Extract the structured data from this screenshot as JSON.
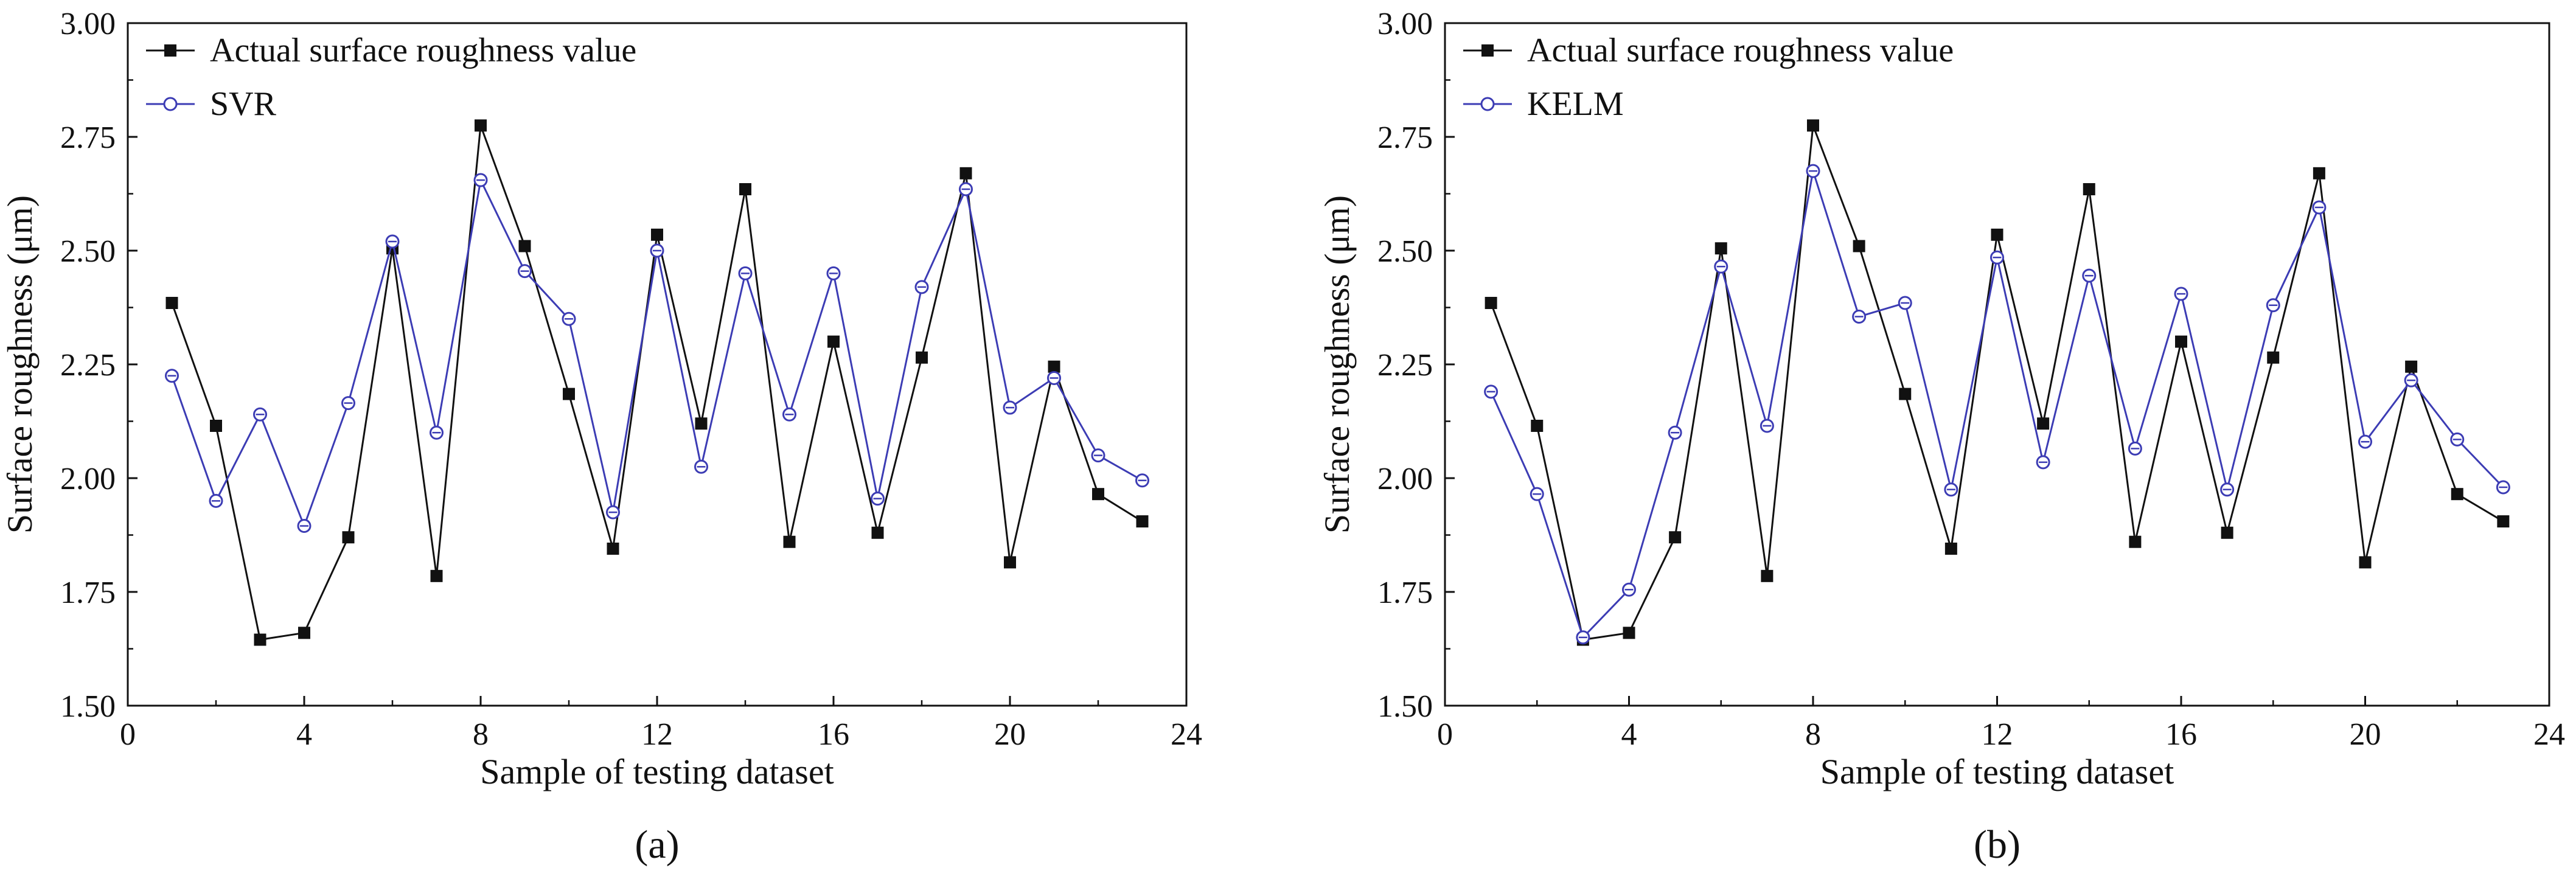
{
  "chart_data": [
    {
      "type": "line",
      "panel_label": "(a)",
      "xlabel": "Sample of testing dataset",
      "ylabel": "Surface roughness (μm)",
      "xlim": [
        0,
        24
      ],
      "ylim": [
        1.5,
        3.0
      ],
      "xticks": [
        "0",
        "4",
        "8",
        "12",
        "16",
        "20",
        "24"
      ],
      "yticks": [
        "1.50",
        "1.75",
        "2.00",
        "2.25",
        "2.50",
        "2.75",
        "3.00"
      ],
      "legend_position": "top-left",
      "x": [
        1,
        2,
        3,
        4,
        5,
        6,
        7,
        8,
        9,
        10,
        11,
        12,
        13,
        14,
        15,
        16,
        17,
        18,
        19,
        20,
        21,
        22,
        23
      ],
      "series": [
        {
          "name": "Actual surface roughness value",
          "color": "#111111",
          "marker": "square",
          "values": [
            2.385,
            2.115,
            1.645,
            1.66,
            1.87,
            2.505,
            1.785,
            2.775,
            2.51,
            2.185,
            1.845,
            2.535,
            2.12,
            2.635,
            1.86,
            2.3,
            1.88,
            2.265,
            2.67,
            1.815,
            2.245,
            1.965,
            1.905
          ]
        },
        {
          "name": "SVR",
          "color": "#3c3cb4",
          "marker": "circle",
          "values": [
            2.225,
            1.95,
            2.14,
            1.895,
            2.165,
            2.52,
            2.1,
            2.655,
            2.455,
            2.35,
            1.925,
            2.5,
            2.025,
            2.45,
            2.14,
            2.45,
            1.955,
            2.42,
            2.635,
            2.155,
            2.22,
            2.05,
            1.995
          ]
        }
      ]
    },
    {
      "type": "line",
      "panel_label": "(b)",
      "xlabel": "Sample of testing dataset",
      "ylabel": "Surface roughness (μm)",
      "xlim": [
        0,
        24
      ],
      "ylim": [
        1.5,
        3.0
      ],
      "xticks": [
        "0",
        "4",
        "8",
        "12",
        "16",
        "20",
        "24"
      ],
      "yticks": [
        "1.50",
        "1.75",
        "2.00",
        "2.25",
        "2.50",
        "2.75",
        "3.00"
      ],
      "legend_position": "top-left",
      "x": [
        1,
        2,
        3,
        4,
        5,
        6,
        7,
        8,
        9,
        10,
        11,
        12,
        13,
        14,
        15,
        16,
        17,
        18,
        19,
        20,
        21,
        22,
        23
      ],
      "series": [
        {
          "name": "Actual surface roughness value",
          "color": "#111111",
          "marker": "square",
          "values": [
            2.385,
            2.115,
            1.645,
            1.66,
            1.87,
            2.505,
            1.785,
            2.775,
            2.51,
            2.185,
            1.845,
            2.535,
            2.12,
            2.635,
            1.86,
            2.3,
            1.88,
            2.265,
            2.67,
            1.815,
            2.245,
            1.965,
            1.905
          ]
        },
        {
          "name": "KELM",
          "color": "#3c3cb4",
          "marker": "circle",
          "values": [
            2.19,
            1.965,
            1.65,
            1.755,
            2.1,
            2.465,
            2.115,
            2.675,
            2.355,
            2.385,
            1.975,
            2.485,
            2.035,
            2.445,
            2.065,
            2.405,
            1.975,
            2.38,
            2.595,
            2.08,
            2.215,
            2.085,
            1.98
          ]
        }
      ]
    }
  ]
}
